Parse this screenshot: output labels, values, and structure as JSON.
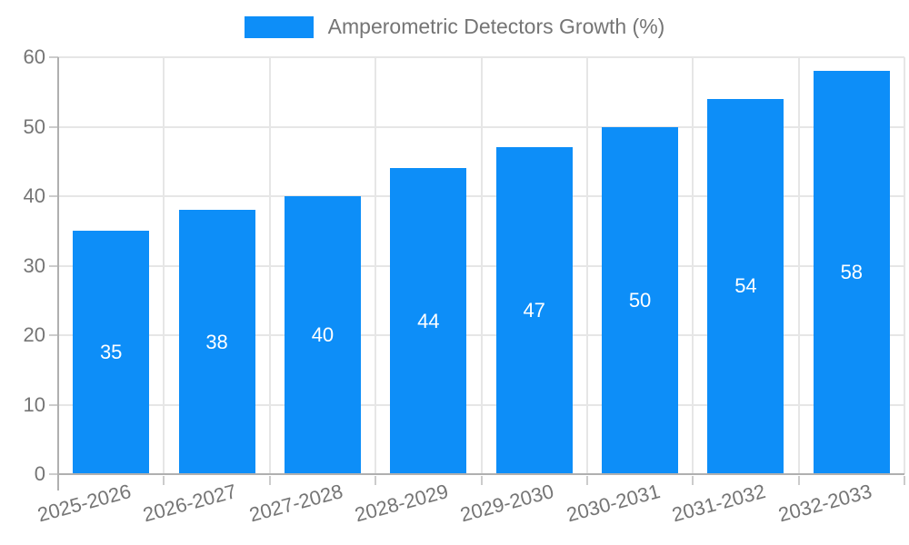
{
  "chart_data": {
    "type": "bar",
    "title": "Amperometric Detectors Growth (%)",
    "categories": [
      "2025-2026",
      "2026-2027",
      "2027-2028",
      "2028-2029",
      "2029-2030",
      "2030-2031",
      "2031-2032",
      "2032-2033"
    ],
    "values": [
      35,
      38,
      40,
      44,
      47,
      50,
      54,
      58
    ],
    "value_labels_shown": true,
    "xlabel": "",
    "ylabel": "",
    "ylim": [
      0,
      60
    ],
    "yticks": [
      0,
      10,
      20,
      30,
      40,
      50,
      60
    ],
    "grid": true,
    "legend_position": "top-center",
    "x_label_rotation_deg": -15,
    "colors": {
      "bar": "#0d8ef8",
      "value_label": "#ffffff",
      "axis_text": "#757575",
      "gridline": "#e6e6e6",
      "axis_line": "#b0b0b0",
      "tick": "#cccccc",
      "background": "#ffffff"
    }
  }
}
